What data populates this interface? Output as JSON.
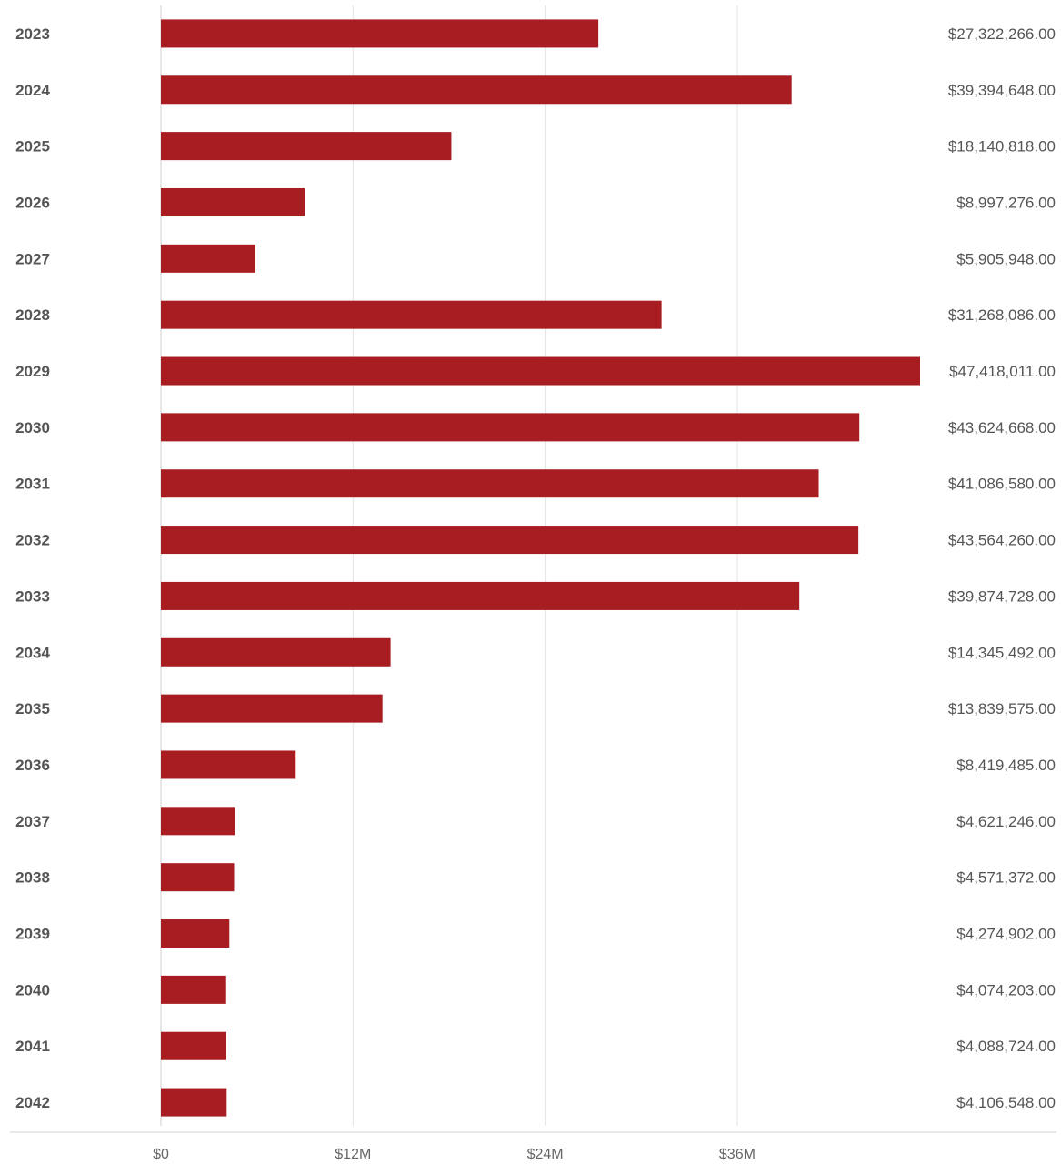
{
  "chart_data": {
    "type": "bar",
    "orientation": "horizontal",
    "categories": [
      "2023",
      "2024",
      "2025",
      "2026",
      "2027",
      "2028",
      "2029",
      "2030",
      "2031",
      "2032",
      "2033",
      "2034",
      "2035",
      "2036",
      "2037",
      "2038",
      "2039",
      "2040",
      "2041",
      "2042"
    ],
    "values": [
      27322266,
      39394648,
      18140818,
      8997276,
      5905948,
      31268086,
      47418011,
      43624668,
      41086580,
      43564260,
      39874728,
      14345492,
      13839575,
      8419485,
      4621246,
      4571372,
      4274902,
      4074203,
      4088724,
      4106548
    ],
    "value_labels": [
      "$27,322,266.00",
      "$39,394,648.00",
      "$18,140,818.00",
      "$8,997,276.00",
      "$5,905,948.00",
      "$31,268,086.00",
      "$47,418,011.00",
      "$43,624,668.00",
      "$41,086,580.00",
      "$43,564,260.00",
      "$39,874,728.00",
      "$14,345,492.00",
      "$13,839,575.00",
      "$8,419,485.00",
      "$4,621,246.00",
      "$4,571,372.00",
      "$4,274,902.00",
      "$4,074,203.00",
      "$4,088,724.00",
      "$4,106,548.00"
    ],
    "x_ticks": [
      0,
      12000000,
      24000000,
      36000000
    ],
    "x_tick_labels": [
      "$0",
      "$12M",
      "$24M",
      "$36M"
    ],
    "xlim": [
      0,
      47418011
    ],
    "grid": true,
    "bar_color": "#a71d22",
    "title": "",
    "xlabel": "",
    "ylabel": ""
  }
}
